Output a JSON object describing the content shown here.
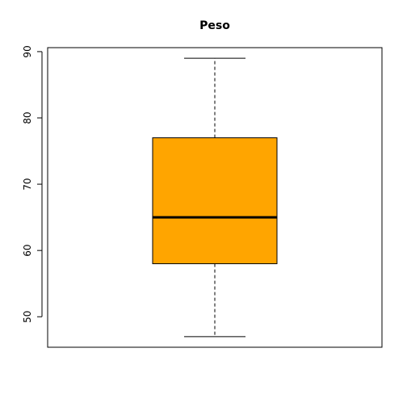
{
  "chart_data": {
    "type": "box",
    "title": "Peso",
    "xlabel": "",
    "ylabel": "",
    "ylim": [
      45.4,
      90.6
    ],
    "yticks": [
      50,
      60,
      70,
      80,
      90
    ],
    "grid": false,
    "box_color": "#FFA500",
    "series": [
      {
        "min": 47,
        "q1": 58,
        "median": 65,
        "q3": 77,
        "max": 89
      }
    ]
  }
}
